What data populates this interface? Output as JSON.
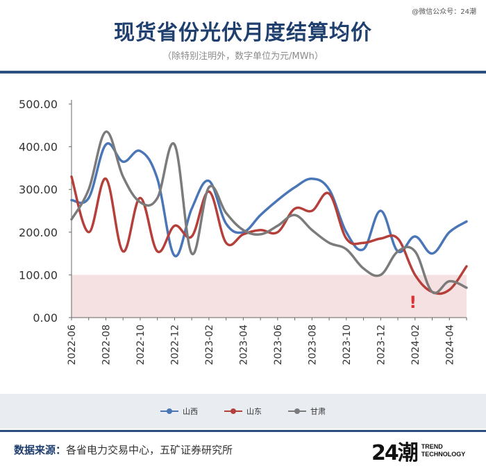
{
  "header": {
    "title": "现货省份光伏月度结算均价",
    "subtitle": "（除特别注明外，数字单位为元/MWh）",
    "watermark": "@微信公众号：24潮"
  },
  "footer": {
    "source_label": "数据来源：",
    "source_text": "各省电力交易中心，五矿证券研究所",
    "logo_mark": "24潮",
    "logo_line1": "TREND",
    "logo_line2": "TECHNOLOGY"
  },
  "chart_data": {
    "type": "line",
    "ylim": [
      0,
      500
    ],
    "yticks": [
      "0.00",
      "100.00",
      "200.00",
      "300.00",
      "400.00",
      "500.00"
    ],
    "x": [
      "2022-06",
      "2022-07",
      "2022-08",
      "2022-09",
      "2022-10",
      "2022-11",
      "2022-12",
      "2023-01",
      "2023-02",
      "2023-03",
      "2023-04",
      "2023-05",
      "2023-06",
      "2023-07",
      "2023-08",
      "2023-09",
      "2023-10",
      "2023-11",
      "2023-12",
      "2024-01",
      "2024-02",
      "2024-03",
      "2024-04",
      "2024-05"
    ],
    "xtick_labels": [
      "2022-06",
      "2022-08",
      "2022-10",
      "2022-12",
      "2023-02",
      "2023-04",
      "2023-06",
      "2023-08",
      "2023-10",
      "2023-12",
      "2024-02",
      "2024-04"
    ],
    "highlight_band": [
      0,
      100
    ],
    "annotation": "!",
    "series": [
      {
        "name": "山西",
        "color": "#4a76b8",
        "values": [
          275,
          280,
          405,
          365,
          390,
          325,
          145,
          255,
          320,
          220,
          200,
          240,
          275,
          305,
          325,
          300,
          200,
          160,
          250,
          155,
          190,
          150,
          200,
          225
        ]
      },
      {
        "name": "山东",
        "color": "#b5403b",
        "values": [
          330,
          200,
          325,
          155,
          280,
          155,
          215,
          190,
          295,
          175,
          195,
          205,
          200,
          255,
          250,
          290,
          185,
          175,
          185,
          185,
          100,
          60,
          65,
          120
        ]
      },
      {
        "name": "甘肃",
        "color": "#7b7b7b",
        "values": [
          230,
          300,
          435,
          330,
          270,
          280,
          405,
          150,
          305,
          245,
          205,
          195,
          215,
          240,
          205,
          175,
          160,
          115,
          100,
          155,
          155,
          60,
          85,
          70
        ]
      }
    ]
  }
}
